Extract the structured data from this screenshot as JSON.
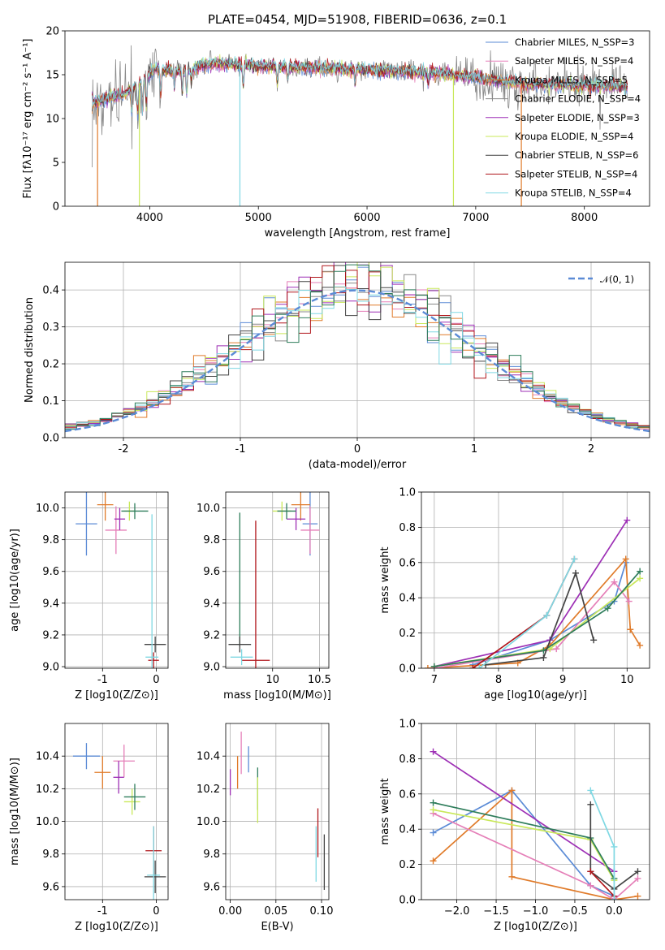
{
  "chart_data": [
    {
      "id": "spectrum",
      "type": "line",
      "title": "PLATE=0454, MJD=51908, FIBERID=0636, z=0.1",
      "xlabel": "wavelength [Angstrom, rest frame]",
      "ylabel": "Flux [fλ10⁻¹⁷ erg cm⁻² s⁻¹ A⁻¹]",
      "xlim": [
        3220,
        8600
      ],
      "ylim": [
        0,
        20
      ],
      "xticks": [
        4000,
        5000,
        6000,
        7000,
        8000
      ],
      "yticks": [
        0,
        5,
        10,
        15,
        20
      ],
      "grid": false,
      "legend_position": "top-right",
      "series": [
        {
          "name": "Chabrier MILES, N_SSP=3",
          "color": "#5b8bd6"
        },
        {
          "name": "Salpeter MILES, N_SSP=4",
          "color": "#e57fb8"
        },
        {
          "name": "Kroupa MILES, N_SSP=5",
          "color": "#e07b2a"
        },
        {
          "name": "Chabrier ELODIE, N_SSP=4",
          "color": "#888888"
        },
        {
          "name": "Salpeter ELODIE, N_SSP=3",
          "color": "#9d2fb5"
        },
        {
          "name": "Kroupa ELODIE, N_SSP=4",
          "color": "#c9e85a"
        },
        {
          "name": "Chabrier STELIB, N_SSP=6",
          "color": "#444444"
        },
        {
          "name": "Salpeter STELIB, N_SSP=4",
          "color": "#b0161b"
        },
        {
          "name": "Kroupa STELIB, N_SSP=4",
          "color": "#7fd8e3"
        }
      ],
      "continuum_knots": [
        [
          3470,
          11.8
        ],
        [
          3600,
          12.2
        ],
        [
          3800,
          13.0
        ],
        [
          3950,
          14.5
        ],
        [
          4050,
          15.6
        ],
        [
          4300,
          15.4
        ],
        [
          4600,
          16.3
        ],
        [
          5000,
          16.0
        ],
        [
          5500,
          15.8
        ],
        [
          6000,
          15.5
        ],
        [
          6500,
          15.3
        ],
        [
          7000,
          14.7
        ],
        [
          7400,
          14.0
        ],
        [
          7900,
          13.8
        ],
        [
          8400,
          13.6
        ]
      ]
    },
    {
      "id": "residuals",
      "type": "histogram",
      "xlabel": "(data-model)/error",
      "ylabel": "Normed distribution",
      "xlim": [
        -2.5,
        2.5
      ],
      "ylim": [
        0,
        0.475
      ],
      "xticks": [
        -2,
        -1,
        0,
        1,
        2
      ],
      "yticks": [
        0.0,
        0.1,
        0.2,
        0.3,
        0.4
      ],
      "grid": true,
      "legend": "𝒩(0, 1)",
      "legend_position": "top-right",
      "gaussian": {
        "mean": 0,
        "sigma": 1,
        "color": "#5b8bd6"
      },
      "bins": [
        -2.5,
        2.5,
        50
      ]
    },
    {
      "id": "z-age",
      "type": "errorbar",
      "xlabel": "Z [log10(Z/Z⊙)]",
      "ylabel": "age  [log10(age/yr)]",
      "xlim": [
        -1.7,
        0.22
      ],
      "ylim": [
        8.99,
        10.1
      ],
      "xticks": [
        -1,
        0
      ],
      "yticks": [
        9.0,
        9.2,
        9.4,
        9.6,
        9.8,
        10.0
      ],
      "grid": true,
      "points": [
        {
          "c": "#5b8bd6",
          "x": -1.3,
          "xe": 0.2,
          "y": 9.9,
          "ye": 0.2
        },
        {
          "c": "#e07b2a",
          "x": -0.95,
          "xe": 0.15,
          "y": 10.02,
          "ye": 0.1
        },
        {
          "c": "#e57fb8",
          "x": -0.75,
          "xe": 0.2,
          "y": 9.86,
          "ye": 0.15
        },
        {
          "c": "#9d2fb5",
          "x": -0.68,
          "xe": 0.1,
          "y": 9.93,
          "ye": 0.07
        },
        {
          "c": "#c9e85a",
          "x": -0.5,
          "xe": 0.1,
          "y": 9.98,
          "ye": 0.06
        },
        {
          "c": "#2e7d5b",
          "x": -0.4,
          "xe": 0.25,
          "y": 9.98,
          "ye": 0.05
        },
        {
          "c": "#b0161b",
          "x": -0.05,
          "xe": 0.1,
          "y": 9.04,
          "ye": 0.05
        },
        {
          "c": "#444444",
          "x": -0.02,
          "xe": 0.2,
          "y": 9.14,
          "ye": 0.05
        },
        {
          "c": "#7fd8e3",
          "x": -0.08,
          "xe": 0.12,
          "y": 9.06,
          "ye": 0.9
        }
      ]
    },
    {
      "id": "mass-age",
      "type": "errorbar",
      "xlabel": "mass [log10(M/M⊙)]",
      "ylabel": "",
      "xlim": [
        9.5,
        10.6
      ],
      "ylim": [
        8.99,
        10.1
      ],
      "xticks": [
        10.0,
        10.5
      ],
      "yticks": [
        9.0,
        9.2,
        9.4,
        9.6,
        9.8,
        10.0
      ],
      "grid": true,
      "points": [
        {
          "c": "#5b8bd6",
          "x": 10.4,
          "xe": 0.08,
          "y": 9.9,
          "ye": 0.2
        },
        {
          "c": "#e07b2a",
          "x": 10.3,
          "xe": 0.1,
          "y": 10.02,
          "ye": 0.1
        },
        {
          "c": "#e57fb8",
          "x": 10.4,
          "xe": 0.1,
          "y": 9.86,
          "ye": 0.15
        },
        {
          "c": "#9d2fb5",
          "x": 10.25,
          "xe": 0.1,
          "y": 9.93,
          "ye": 0.07
        },
        {
          "c": "#c9e85a",
          "x": 10.1,
          "xe": 0.1,
          "y": 9.98,
          "ye": 0.06
        },
        {
          "c": "#2e7d5b",
          "x": 10.15,
          "xe": 0.1,
          "y": 9.98,
          "ye": 0.05
        },
        {
          "c": "#2e7d5b",
          "x": 9.65,
          "xe": 0.0,
          "y": 9.55,
          "ye": 0.42
        },
        {
          "c": "#b0161b",
          "x": 9.82,
          "xe": 0.15,
          "y": 9.04,
          "ye": 0.88
        },
        {
          "c": "#444444",
          "x": 9.65,
          "xe": 0.12,
          "y": 9.14,
          "ye": 0.05
        },
        {
          "c": "#7fd8e3",
          "x": 9.67,
          "xe": 0.12,
          "y": 9.06,
          "ye": 0.05
        }
      ]
    },
    {
      "id": "age-weight",
      "type": "line",
      "xlabel": "age  [log10(age/yr)]",
      "ylabel": "mass weight",
      "xlim": [
        6.8,
        10.35
      ],
      "ylim": [
        0,
        1.0
      ],
      "xticks": [
        7,
        8,
        9,
        10
      ],
      "yticks": [
        0.0,
        0.2,
        0.4,
        0.6,
        0.8,
        1.0
      ],
      "grid": true,
      "series": [
        {
          "c": "#5b8bd6",
          "x": [
            7.6,
            8.8,
            9.8,
            9.98
          ],
          "y": [
            0.02,
            0.16,
            0.38,
            0.6
          ]
        },
        {
          "c": "#e07b2a",
          "x": [
            6.9,
            8.3,
            8.8,
            9.98,
            10.05,
            10.2
          ],
          "y": [
            0.0,
            0.03,
            0.13,
            0.62,
            0.22,
            0.13
          ]
        },
        {
          "c": "#e57fb8",
          "x": [
            7.0,
            8.9,
            9.8,
            10.03
          ],
          "y": [
            0.0,
            0.11,
            0.49,
            0.38
          ]
        },
        {
          "c": "#9d2fb5",
          "x": [
            7.0,
            8.8,
            10.0
          ],
          "y": [
            0.01,
            0.16,
            0.84
          ]
        },
        {
          "c": "#c9e85a",
          "x": [
            7.0,
            8.8,
            10.2
          ],
          "y": [
            0.01,
            0.11,
            0.51
          ]
        },
        {
          "c": "#2e7d5b",
          "x": [
            7.0,
            8.7,
            9.7,
            10.2
          ],
          "y": [
            0.01,
            0.1,
            0.34,
            0.55
          ]
        },
        {
          "c": "#444444",
          "x": [
            7.8,
            8.7,
            9.2,
            9.48
          ],
          "y": [
            0.02,
            0.06,
            0.54,
            0.16
          ]
        },
        {
          "c": "#b0161b",
          "x": [
            7.6,
            8.75,
            9.18
          ],
          "y": [
            0.0,
            0.3,
            0.62
          ]
        },
        {
          "c": "#7fd8e3",
          "x": [
            7.7,
            8.75,
            9.18
          ],
          "y": [
            0.0,
            0.3,
            0.62
          ]
        }
      ]
    },
    {
      "id": "z-mass",
      "type": "errorbar",
      "xlabel": "Z [log10(Z/Z⊙)]",
      "ylabel": "mass [log10(M/M⊙)]",
      "xlim": [
        -1.7,
        0.22
      ],
      "ylim": [
        9.52,
        10.6
      ],
      "xticks": [
        -1,
        0
      ],
      "yticks": [
        9.6,
        9.8,
        10.0,
        10.2,
        10.4
      ],
      "grid": true,
      "points": [
        {
          "c": "#5b8bd6",
          "x": -1.3,
          "xe": 0.25,
          "y": 10.4,
          "ye": 0.08
        },
        {
          "c": "#e07b2a",
          "x": -1.0,
          "xe": 0.15,
          "y": 10.3,
          "ye": 0.1
        },
        {
          "c": "#e57fb8",
          "x": -0.6,
          "xe": 0.2,
          "y": 10.37,
          "ye": 0.1
        },
        {
          "c": "#9d2fb5",
          "x": -0.7,
          "xe": 0.1,
          "y": 10.27,
          "ye": 0.1
        },
        {
          "c": "#c9e85a",
          "x": -0.45,
          "xe": 0.15,
          "y": 10.12,
          "ye": 0.08
        },
        {
          "c": "#2e7d5b",
          "x": -0.4,
          "xe": 0.2,
          "y": 10.15,
          "ye": 0.08
        },
        {
          "c": "#b0161b",
          "x": -0.05,
          "xe": 0.15,
          "y": 9.82,
          "ye": 0.15
        },
        {
          "c": "#444444",
          "x": -0.02,
          "xe": 0.2,
          "y": 9.66,
          "ye": 0.1
        },
        {
          "c": "#7fd8e3",
          "x": -0.05,
          "xe": 0.12,
          "y": 9.67,
          "ye": 0.3
        }
      ]
    },
    {
      "id": "ebv-mass",
      "type": "errorbar",
      "xlabel": "E(B-V)",
      "ylabel": "",
      "xlim": [
        -0.005,
        0.108
      ],
      "ylim": [
        9.52,
        10.6
      ],
      "xticks": [
        0.0,
        0.05,
        0.1
      ],
      "xticklabels": [
        "0.00",
        "0.05",
        "0.10"
      ],
      "yticks": [
        9.6,
        9.8,
        10.0,
        10.2,
        10.4
      ],
      "grid": true,
      "points": [
        {
          "c": "#9d2fb5",
          "x": 0.0,
          "xe": 0,
          "y": 10.24,
          "ye": 0.08
        },
        {
          "c": "#e07b2a",
          "x": 0.008,
          "xe": 0,
          "y": 10.3,
          "ye": 0.1
        },
        {
          "c": "#e57fb8",
          "x": 0.012,
          "xe": 0,
          "y": 10.42,
          "ye": 0.13
        },
        {
          "c": "#5b8bd6",
          "x": 0.02,
          "xe": 0,
          "y": 10.38,
          "ye": 0.08
        },
        {
          "c": "#2e7d5b",
          "x": 0.03,
          "xe": 0,
          "y": 10.2,
          "ye": 0.13
        },
        {
          "c": "#c9e85a",
          "x": 0.03,
          "xe": 0,
          "y": 10.13,
          "ye": 0.14
        },
        {
          "c": "#7fd8e3",
          "x": 0.094,
          "xe": 0,
          "y": 9.8,
          "ye": 0.17
        },
        {
          "c": "#b0161b",
          "x": 0.096,
          "xe": 0,
          "y": 9.93,
          "ye": 0.15
        },
        {
          "c": "#444444",
          "x": 0.103,
          "xe": 0,
          "y": 9.75,
          "ye": 0.17
        }
      ]
    },
    {
      "id": "z-weight",
      "type": "line",
      "xlabel": "Z [log10(Z/Z⊙)]",
      "ylabel": "mass weight",
      "xlim": [
        -2.45,
        0.45
      ],
      "ylim": [
        0,
        1.0
      ],
      "xticks": [
        -2.0,
        -1.5,
        -1.0,
        -0.5,
        0.0
      ],
      "xticklabels": [
        "−2.0",
        "−1.5",
        "−1.0",
        "−0.5",
        "0.0"
      ],
      "yticks": [
        0.0,
        0.2,
        0.4,
        0.6,
        0.8,
        1.0
      ],
      "grid": true,
      "series": [
        {
          "c": "#5b8bd6",
          "x": [
            -2.3,
            -1.3,
            -0.3,
            0.0
          ],
          "y": [
            0.38,
            0.62,
            0.08,
            0.02
          ]
        },
        {
          "c": "#e07b2a",
          "x": [
            -2.3,
            -1.3,
            -1.3,
            0.0,
            0.3
          ],
          "y": [
            0.22,
            0.62,
            0.13,
            0.0,
            0.02
          ]
        },
        {
          "c": "#e57fb8",
          "x": [
            -2.3,
            -0.3,
            0.0,
            0.3
          ],
          "y": [
            0.49,
            0.08,
            0.0,
            0.12
          ]
        },
        {
          "c": "#9d2fb5",
          "x": [
            -2.3,
            0.0
          ],
          "y": [
            0.84,
            0.16
          ]
        },
        {
          "c": "#c9e85a",
          "x": [
            -2.3,
            -0.3,
            0.0
          ],
          "y": [
            0.51,
            0.34,
            0.11
          ]
        },
        {
          "c": "#2e7d5b",
          "x": [
            -2.3,
            -0.3,
            0.0
          ],
          "y": [
            0.55,
            0.35,
            0.12
          ]
        },
        {
          "c": "#444444",
          "x": [
            -0.3,
            -0.3,
            0.0,
            0.3
          ],
          "y": [
            0.54,
            0.16,
            0.06,
            0.16
          ]
        },
        {
          "c": "#b0161b",
          "x": [
            -0.3,
            0.0
          ],
          "y": [
            0.16,
            0.02
          ]
        },
        {
          "c": "#7fd8e3",
          "x": [
            -0.3,
            0.0,
            0.0
          ],
          "y": [
            0.62,
            0.3,
            0.0
          ]
        }
      ]
    }
  ]
}
